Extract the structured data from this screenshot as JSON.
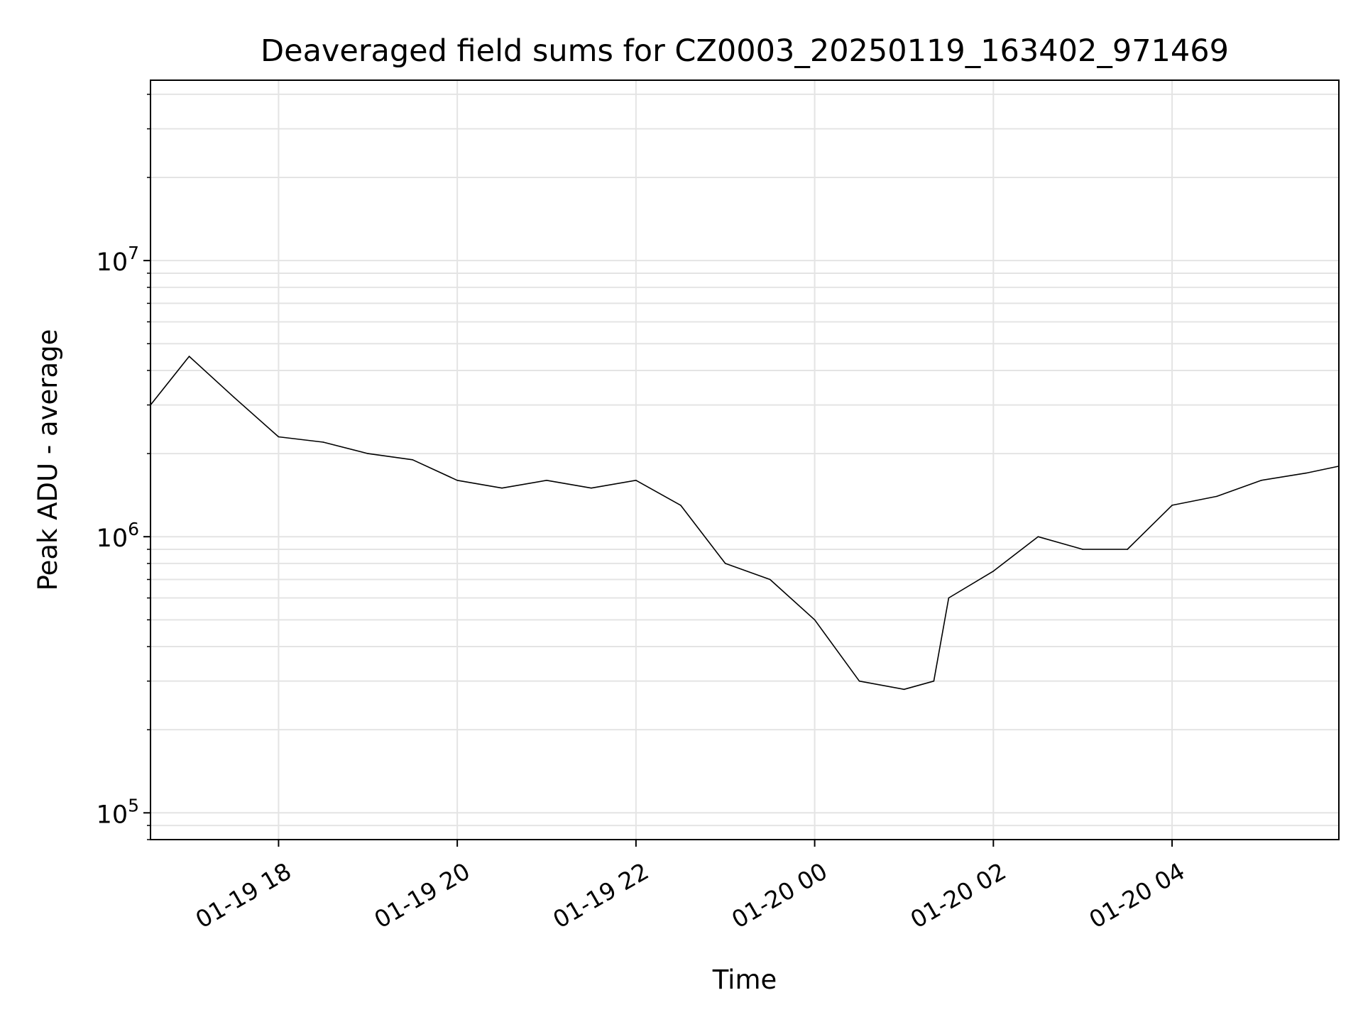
{
  "chart_data": {
    "type": "line",
    "title": "Deaveraged field sums for CZ0003_20250119_163402_971469",
    "xlabel": "Time",
    "ylabel": "Peak ADU - average",
    "yscale": "log",
    "ylim": [
      80000,
      45000000
    ],
    "xlim": [
      "2025-01-19 16:34",
      "2025-01-20 05:52"
    ],
    "grid": true,
    "legend": "none",
    "line_color": "#000000",
    "x_ticks": [
      {
        "value": "2025-01-19 18:00",
        "label": "01-19 18"
      },
      {
        "value": "2025-01-19 20:00",
        "label": "01-19 20"
      },
      {
        "value": "2025-01-19 22:00",
        "label": "01-19 22"
      },
      {
        "value": "2025-01-20 00:00",
        "label": "01-20 00"
      },
      {
        "value": "2025-01-20 02:00",
        "label": "01-20 02"
      },
      {
        "value": "2025-01-20 04:00",
        "label": "01-20 04"
      }
    ],
    "y_ticks": [
      {
        "value": 100000,
        "base": "10",
        "exp": "5"
      },
      {
        "value": 1000000,
        "base": "10",
        "exp": "6"
      },
      {
        "value": 10000000,
        "base": "10",
        "exp": "7"
      }
    ],
    "series": [
      {
        "x": [
          "2025-01-19 16:34",
          "2025-01-19 17:00",
          "2025-01-19 17:30",
          "2025-01-19 18:00",
          "2025-01-19 18:30",
          "2025-01-19 19:00",
          "2025-01-19 19:30",
          "2025-01-19 20:00",
          "2025-01-19 20:30",
          "2025-01-19 21:00",
          "2025-01-19 21:30",
          "2025-01-19 22:00",
          "2025-01-19 22:30",
          "2025-01-19 23:00",
          "2025-01-19 23:30",
          "2025-01-20 00:00",
          "2025-01-20 00:30",
          "2025-01-20 01:00",
          "2025-01-20 01:20",
          "2025-01-20 01:30",
          "2025-01-20 02:00",
          "2025-01-20 02:30",
          "2025-01-20 03:00",
          "2025-01-20 03:30",
          "2025-01-20 04:00",
          "2025-01-20 04:30",
          "2025-01-20 05:00",
          "2025-01-20 05:30",
          "2025-01-20 05:52"
        ],
        "y": [
          3000000,
          4500000,
          3200000,
          2300000,
          2200000,
          2000000,
          1900000,
          1600000,
          1500000,
          1600000,
          1500000,
          1600000,
          1300000,
          800000,
          700000,
          500000,
          300000,
          280000,
          300000,
          600000,
          750000,
          1000000,
          900000,
          900000,
          1300000,
          1400000,
          1600000,
          1700000,
          1800000
        ]
      }
    ]
  }
}
